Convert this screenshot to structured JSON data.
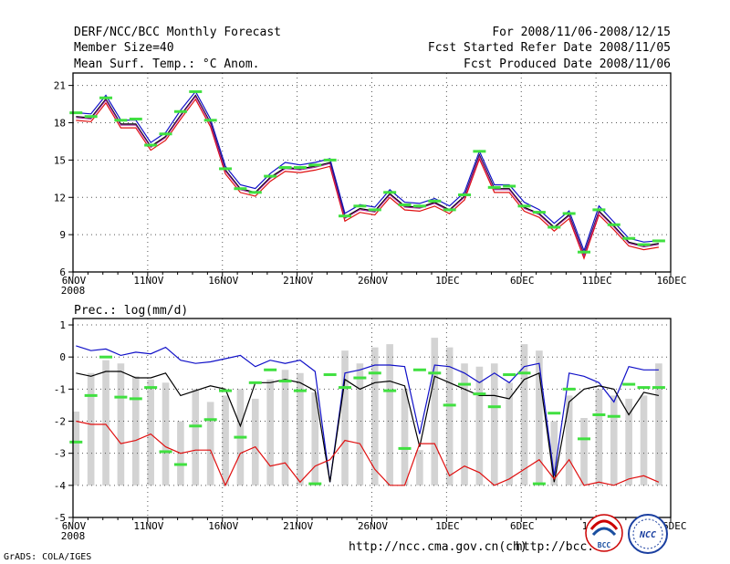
{
  "header": {
    "title": "DERF/NCC/BCC Monthly Forecast",
    "member": "Member Size=40",
    "variable": "Mean Surf. Temp.: °C Anom.",
    "period": "For 2008/11/06-2008/12/15",
    "refer": "Fcst Started Refer Date 2008/11/05",
    "produced": "Fcst Produced Date 2008/11/06"
  },
  "footer": {
    "credit": "GrADS: COLA/IGES",
    "url1": "http://ncc.cma.gov.cn(ch)",
    "url2": "http://bcc.c",
    "logo1": "BCC",
    "logo2": "NCC"
  },
  "colors": {
    "blue": "#1010c8",
    "black": "#000000",
    "red": "#e01010",
    "purple": "#a020a0",
    "green": "#40e040",
    "bar": "#d3d3d3"
  },
  "chart_data": [
    {
      "type": "line",
      "title": "Mean Surf. Temp.: °C Anom.",
      "xlabel": "",
      "ylabel": "",
      "ylim": [
        6,
        22
      ],
      "yticks": [
        6,
        9,
        12,
        15,
        18,
        21
      ],
      "xlim": [
        0,
        40
      ],
      "xticks": [
        {
          "pos": 0,
          "label": "6NOV"
        },
        {
          "pos": 5,
          "label": "11NOV"
        },
        {
          "pos": 10,
          "label": "16NOV"
        },
        {
          "pos": 15,
          "label": "21NOV"
        },
        {
          "pos": 20,
          "label": "26NOV"
        },
        {
          "pos": 25,
          "label": "1DEC"
        },
        {
          "pos": 30,
          "label": "6DEC"
        },
        {
          "pos": 35,
          "label": "11DEC"
        },
        {
          "pos": 40,
          "label": "16DEC"
        }
      ],
      "year_label": "2008",
      "x": [
        0,
        1,
        2,
        3,
        4,
        5,
        6,
        7,
        8,
        9,
        10,
        11,
        12,
        13,
        14,
        15,
        16,
        17,
        18,
        19,
        20,
        21,
        22,
        23,
        24,
        25,
        26,
        27,
        28,
        29,
        30,
        31,
        32,
        33,
        34,
        35,
        36,
        37,
        38,
        39
      ],
      "series": [
        {
          "name": "upper",
          "color": "#1010c8",
          "values": [
            18.7,
            18.6,
            20.1,
            18.1,
            18.1,
            16.3,
            17.1,
            18.9,
            20.4,
            18.2,
            14.4,
            12.9,
            12.6,
            13.8,
            14.7,
            14.5,
            14.7,
            15.0,
            10.6,
            11.3,
            11.1,
            12.5,
            11.5,
            11.4,
            11.8,
            11.2,
            12.3,
            15.6,
            12.9,
            12.9,
            11.5,
            10.9,
            9.8,
            10.8,
            7.6,
            11.2,
            9.9,
            8.6,
            8.3,
            8.4
          ]
        },
        {
          "name": "mean",
          "color": "#000000",
          "values": [
            18.5,
            18.4,
            19.9,
            17.9,
            17.9,
            16.1,
            16.9,
            18.6,
            20.2,
            18.0,
            14.2,
            12.7,
            12.4,
            13.6,
            14.4,
            14.3,
            14.5,
            14.8,
            10.4,
            11.1,
            10.9,
            12.3,
            11.3,
            11.2,
            11.6,
            11.0,
            12.1,
            15.4,
            12.7,
            12.7,
            11.2,
            10.7,
            9.6,
            10.6,
            7.4,
            10.9,
            9.7,
            8.4,
            8.1,
            8.3
          ]
        },
        {
          "name": "lower",
          "color": "#e01010",
          "values": [
            18.3,
            18.2,
            19.7,
            17.7,
            17.7,
            15.9,
            16.7,
            18.4,
            20.0,
            17.8,
            14.0,
            12.5,
            12.2,
            13.4,
            14.2,
            14.1,
            14.3,
            14.6,
            10.2,
            10.9,
            10.7,
            12.1,
            11.1,
            11.0,
            11.4,
            10.8,
            11.9,
            15.2,
            12.5,
            12.5,
            11.0,
            10.5,
            9.4,
            10.4,
            7.2,
            10.7,
            9.5,
            8.2,
            7.9,
            8.1
          ]
        }
      ],
      "markers": {
        "name": "observed",
        "color": "#40e040",
        "values": [
          18.8,
          18.5,
          20.0,
          18.2,
          18.3,
          16.2,
          17.1,
          18.9,
          20.5,
          18.2,
          14.3,
          12.7,
          12.4,
          13.7,
          14.4,
          14.4,
          14.6,
          15.0,
          10.5,
          11.3,
          11.0,
          12.4,
          11.4,
          11.3,
          11.7,
          11.0,
          12.2,
          15.7,
          12.8,
          12.9,
          11.3,
          10.8,
          9.6,
          10.7,
          7.6,
          11.0,
          9.8,
          8.7,
          8.2,
          8.5
        ]
      }
    },
    {
      "type": "bar",
      "title": "Prec.: log(mm/d)",
      "ylim": [
        -5,
        1.2
      ],
      "yticks": [
        -5,
        -4,
        -3,
        -2,
        -1,
        0,
        1
      ],
      "xlim": [
        0,
        40
      ],
      "bar_base": -4,
      "xticks": [
        {
          "pos": 0,
          "label": "6NOV"
        },
        {
          "pos": 5,
          "label": "11NOV"
        },
        {
          "pos": 10,
          "label": "16NOV"
        },
        {
          "pos": 15,
          "label": "21NOV"
        },
        {
          "pos": 20,
          "label": "26NOV"
        },
        {
          "pos": 25,
          "label": "1DEC"
        },
        {
          "pos": 30,
          "label": "6DEC"
        },
        {
          "pos": 35,
          "label": "11DEC"
        },
        {
          "pos": 40,
          "label": "16DEC"
        }
      ],
      "year_label": "2008",
      "x": [
        0,
        1,
        2,
        3,
        4,
        5,
        6,
        7,
        8,
        9,
        10,
        11,
        12,
        13,
        14,
        15,
        16,
        17,
        18,
        19,
        20,
        21,
        22,
        23,
        24,
        25,
        26,
        27,
        28,
        29,
        30,
        31,
        32,
        33,
        34,
        35,
        36,
        37,
        38,
        39
      ],
      "bars": [
        -1.7,
        -0.5,
        -0.1,
        -0.2,
        -0.6,
        -0.7,
        -0.8,
        -2.0,
        -1.0,
        -1.4,
        -1.2,
        -1.0,
        -1.3,
        -0.7,
        -0.4,
        -0.5,
        -1.1,
        -4.0,
        0.2,
        -0.2,
        0.3,
        0.4,
        -1.0,
        -2.9,
        0.6,
        0.3,
        -0.2,
        -0.3,
        -0.2,
        -0.8,
        0.4,
        0.2,
        -2.0,
        -1.2,
        -1.9,
        -1.0,
        -1.2,
        -1.3,
        -1.2,
        -0.2
      ],
      "series": [
        {
          "name": "upper",
          "color": "#1010c8",
          "values": [
            0.35,
            0.2,
            0.25,
            0.05,
            0.15,
            0.1,
            0.3,
            -0.1,
            -0.2,
            -0.15,
            -0.05,
            0.05,
            -0.3,
            -0.1,
            -0.2,
            -0.1,
            -0.45,
            -3.9,
            -0.5,
            -0.4,
            -0.25,
            -0.25,
            -0.3,
            -2.4,
            -0.25,
            -0.3,
            -0.5,
            -0.8,
            -0.5,
            -0.8,
            -0.3,
            -0.2,
            -3.7,
            -0.5,
            -0.6,
            -0.8,
            -1.4,
            -0.3,
            -0.4,
            -0.4
          ]
        },
        {
          "name": "mean",
          "color": "#000000",
          "values": [
            -0.5,
            -0.6,
            -0.45,
            -0.45,
            -0.65,
            -0.65,
            -0.5,
            -1.2,
            -1.05,
            -0.9,
            -1.0,
            -2.15,
            -0.8,
            -0.8,
            -0.7,
            -0.8,
            -1.05,
            -3.9,
            -0.7,
            -1.0,
            -0.8,
            -0.75,
            -0.9,
            -2.8,
            -0.6,
            -0.8,
            -1.0,
            -1.2,
            -1.2,
            -1.3,
            -0.7,
            -0.5,
            -3.9,
            -1.4,
            -1.0,
            -0.9,
            -1.0,
            -1.8,
            -1.1,
            -1.2
          ]
        },
        {
          "name": "lower",
          "color": "#e01010",
          "values": [
            -2.0,
            -2.1,
            -2.1,
            -2.7,
            -2.6,
            -2.4,
            -2.8,
            -3.0,
            -2.9,
            -2.9,
            -4.0,
            -3.0,
            -2.8,
            -3.4,
            -3.3,
            -3.9,
            -3.4,
            -3.2,
            -2.6,
            -2.7,
            -3.5,
            -4.0,
            -4.0,
            -2.7,
            -2.7,
            -3.7,
            -3.4,
            -3.6,
            -4.0,
            -3.8,
            -3.5,
            -3.2,
            -3.8,
            -3.2,
            -4.0,
            -3.9,
            -4.0,
            -3.8,
            -3.7,
            -3.9
          ]
        }
      ],
      "markers": {
        "name": "observed",
        "color": "#40e040",
        "values": [
          -2.65,
          -1.2,
          0.0,
          -1.25,
          -1.3,
          -0.95,
          -2.95,
          -3.35,
          -2.15,
          -1.95,
          -1.05,
          -2.5,
          -0.8,
          -0.4,
          -0.75,
          -1.05,
          -3.95,
          -0.55,
          -0.95,
          -0.65,
          -0.5,
          -1.05,
          -2.85,
          -0.4,
          -0.5,
          -1.5,
          -0.85,
          -1.15,
          -1.55,
          -0.55,
          -0.5,
          -3.95,
          -1.75,
          -1.0,
          -2.55,
          -1.8,
          -1.85,
          -0.85,
          -0.95,
          -0.95
        ]
      }
    }
  ]
}
